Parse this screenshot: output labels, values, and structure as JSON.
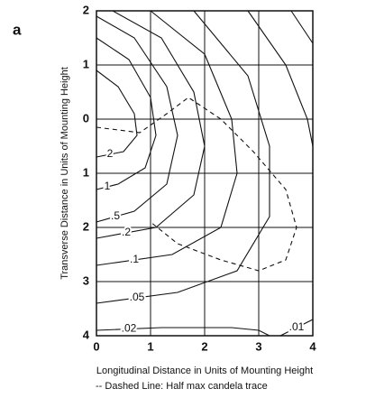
{
  "chart_data": {
    "type": "contour",
    "panel_label": "a",
    "x_label": "Longitudinal Distance in Units of Mounting Height",
    "y_label": "Transverse Distance in Units of Mounting Height",
    "note": "-- Dashed Line: Half max candela trace",
    "xlim": [
      0,
      4
    ],
    "ylim": [
      -2,
      4
    ],
    "y_inverted": true,
    "xticks": [
      0,
      1,
      2,
      3,
      4
    ],
    "yticks": [
      {
        "value": -2,
        "label": "2"
      },
      {
        "value": -1,
        "label": "1"
      },
      0,
      1,
      2,
      3,
      4
    ],
    "grid": true,
    "color": "#111111",
    "contours": [
      {
        "label": "2",
        "x": [
          0,
          0.4,
          0.7,
          0.75,
          0.5,
          0
        ],
        "y": [
          -0.9,
          -0.6,
          -0.1,
          0.3,
          0.6,
          0.7
        ]
      },
      {
        "label": "1",
        "x": [
          0,
          0.6,
          1.0,
          1.1,
          0.9,
          0.4,
          0
        ],
        "y": [
          -1.5,
          -1.1,
          -0.4,
          0.3,
          0.9,
          1.2,
          1.3
        ]
      },
      {
        "label": ".5",
        "x": [
          0,
          0.7,
          1.3,
          1.5,
          1.3,
          0.7,
          0
        ],
        "y": [
          -1.9,
          -1.5,
          -0.6,
          0.3,
          1.2,
          1.7,
          1.9
        ]
      },
      {
        "label": ".2",
        "x": [
          0.3,
          1.2,
          1.8,
          2.0,
          1.8,
          1.1,
          0
        ],
        "y": [
          -2,
          -1.5,
          -0.5,
          0.5,
          1.4,
          2.0,
          2.2
        ]
      },
      {
        "label": ".1",
        "x": [
          1.0,
          2.0,
          2.5,
          2.6,
          2.3,
          1.4,
          0
        ],
        "y": [
          -2,
          -1.2,
          0,
          1,
          2.0,
          2.5,
          2.7
        ]
      },
      {
        "label": ".05",
        "x": [
          1.8,
          2.8,
          3.2,
          3.2,
          2.6,
          1.5,
          0
        ],
        "y": [
          -2,
          -0.8,
          0.5,
          1.8,
          2.8,
          3.2,
          3.4
        ]
      },
      {
        "label": ".02",
        "x": [
          2.8,
          3.5,
          3.9,
          4,
          null,
          3.2,
          3.0,
          2.5,
          1.2,
          0
        ],
        "y": [
          -2,
          -1,
          0,
          0.5,
          null,
          4,
          3.9,
          3.85,
          3.85,
          3.9
        ]
      },
      {
        "label": ".01",
        "x": [
          3.6,
          4,
          null,
          3.4,
          4
        ],
        "y": [
          -2,
          -1.4,
          null,
          4,
          3.7
        ]
      }
    ],
    "half_max_trace": {
      "x": [
        0,
        0.8,
        1.3,
        1.7,
        2.3,
        2.9,
        3.5,
        3.7,
        3.5,
        3.0,
        2.3,
        1.5,
        1.0
      ],
      "y": [
        0.15,
        0.25,
        -0.1,
        -0.4,
        0,
        0.6,
        1.3,
        2,
        2.6,
        2.8,
        2.6,
        2.3,
        1.9
      ]
    }
  }
}
